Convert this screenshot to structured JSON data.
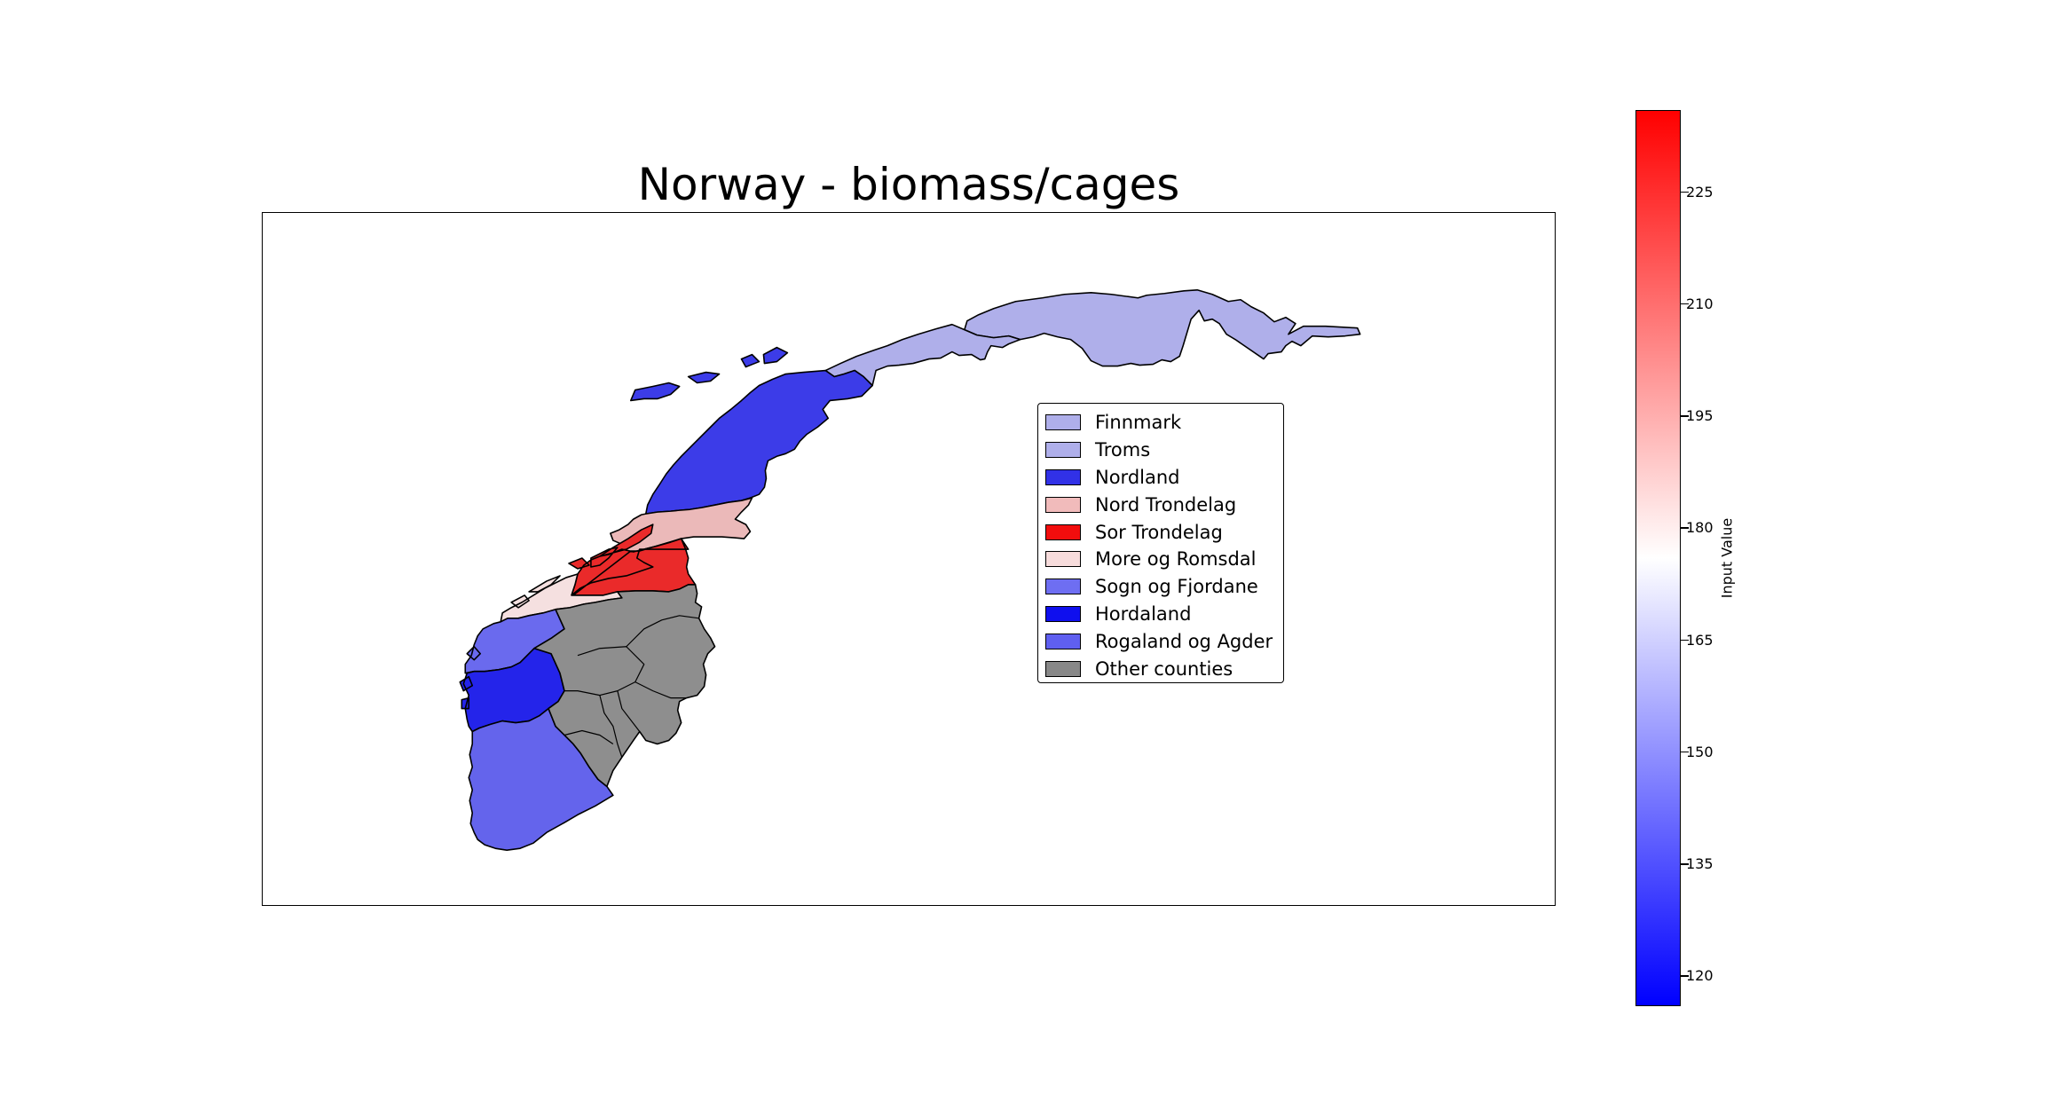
{
  "title": "Norway - biomass/cages",
  "colorbar": {
    "label": "Input Value",
    "range": [
      116,
      236
    ],
    "ticks": [
      "120",
      "135",
      "150",
      "165",
      "180",
      "195",
      "210",
      "225"
    ],
    "colors": [
      "#0000ff",
      "#ffffff",
      "#ff0000"
    ]
  },
  "legend": [
    {
      "label": "Finnmark",
      "color": "#afafea"
    },
    {
      "label": "Troms",
      "color": "#afafea"
    },
    {
      "label": "Nordland",
      "color": "#3131e7"
    },
    {
      "label": "Nord Trondelag",
      "color": "#f1bbbb"
    },
    {
      "label": "Sor Trondelag",
      "color": "#f20d0d"
    },
    {
      "label": "More og Romsdal",
      "color": "#f7dcdc"
    },
    {
      "label": "Sogn og Fjordane",
      "color": "#6e6ef2"
    },
    {
      "label": "Hordaland",
      "color": "#0f0fee"
    },
    {
      "label": "Rogaland og Agder",
      "color": "#5f5ff0"
    },
    {
      "label": "Other counties",
      "color": "#888888"
    }
  ],
  "map": {
    "regions": [
      {
        "name": "Finnmark",
        "color": "#afafea"
      },
      {
        "name": "Troms",
        "color": "#afafea"
      },
      {
        "name": "Nordland",
        "color": "#3c3ce8"
      },
      {
        "name": "Nord Trondelag",
        "color": "#ebb9b9"
      },
      {
        "name": "Sor Trondelag",
        "color": "#ea2a2a"
      },
      {
        "name": "More og Romsdal",
        "color": "#f5e0e0"
      },
      {
        "name": "Sogn og Fjordane",
        "color": "#6a6aee"
      },
      {
        "name": "Hordaland",
        "color": "#2424ea"
      },
      {
        "name": "Rogaland og Agder",
        "color": "#6464ec"
      },
      {
        "name": "Other counties",
        "color": "#8e8e8e"
      }
    ]
  }
}
